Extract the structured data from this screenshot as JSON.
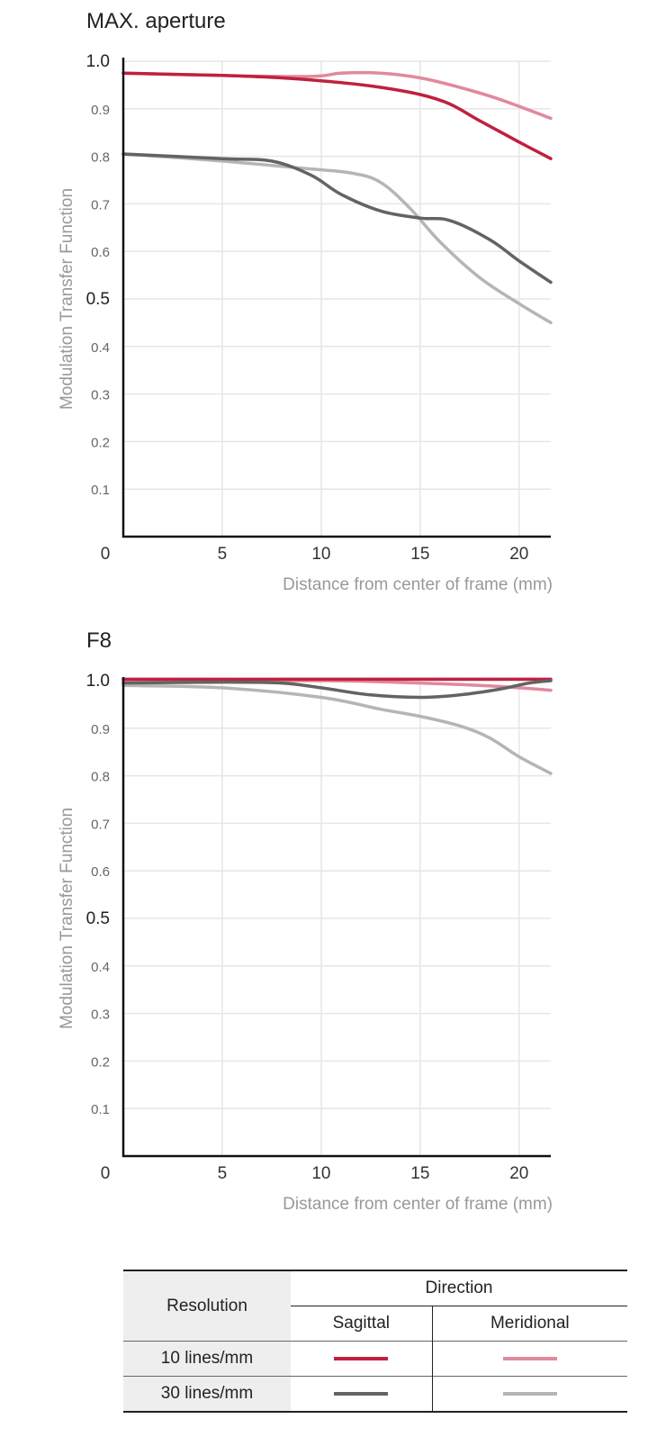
{
  "chart_data": [
    {
      "type": "line",
      "title": "MAX. aperture",
      "xlabel": "Distance from center of frame (mm)",
      "ylabel": "Modulation Transfer Function",
      "xlim": [
        0,
        21.6
      ],
      "ylim": [
        0,
        1.0
      ],
      "xticks": [
        "0",
        "5",
        "10",
        "15",
        "20"
      ],
      "yticks": [
        "0.1",
        "0.2",
        "0.3",
        "0.4",
        "0.5",
        "0.6",
        "0.7",
        "0.8",
        "0.9",
        "1.0"
      ],
      "series": [
        {
          "name": "10 lines/mm Meridional",
          "color": "#e1899d",
          "x": [
            0,
            5,
            9.5,
            11,
            13,
            15,
            17,
            19,
            21.6
          ],
          "y": [
            0.975,
            0.97,
            0.968,
            0.975,
            0.975,
            0.965,
            0.945,
            0.92,
            0.88
          ]
        },
        {
          "name": "10 lines/mm Sagittal",
          "color": "#c0203f",
          "x": [
            0,
            5,
            8,
            11,
            13,
            15,
            16.5,
            18,
            20,
            21.6
          ],
          "y": [
            0.975,
            0.97,
            0.965,
            0.955,
            0.945,
            0.93,
            0.91,
            0.875,
            0.83,
            0.795
          ]
        },
        {
          "name": "30 lines/mm Meridional",
          "color": "#b5b5b5",
          "x": [
            0,
            5,
            9,
            11.5,
            13,
            14.5,
            16,
            18,
            20,
            21.6
          ],
          "y": [
            0.805,
            0.79,
            0.775,
            0.765,
            0.745,
            0.69,
            0.62,
            0.545,
            0.49,
            0.45
          ]
        },
        {
          "name": "30 lines/mm Sagittal",
          "color": "#636363",
          "x": [
            0,
            5,
            7.5,
            9.5,
            11,
            13,
            15,
            16.5,
            18.5,
            20,
            21.6
          ],
          "y": [
            0.805,
            0.795,
            0.79,
            0.76,
            0.72,
            0.685,
            0.67,
            0.665,
            0.625,
            0.58,
            0.535
          ]
        }
      ]
    },
    {
      "type": "line",
      "title": "F8",
      "xlabel": "Distance from center of frame (mm)",
      "ylabel": "Modulation Transfer Function",
      "xlim": [
        0,
        21.6
      ],
      "ylim": [
        0,
        1.0
      ],
      "xticks": [
        "0",
        "5",
        "10",
        "15",
        "20"
      ],
      "yticks": [
        "0.1",
        "0.2",
        "0.3",
        "0.4",
        "0.5",
        "0.6",
        "0.7",
        "0.8",
        "0.9",
        "1.0"
      ],
      "series": [
        {
          "name": "10 lines/mm Meridional",
          "color": "#e1899d",
          "x": [
            0,
            10,
            15,
            18,
            20,
            21.6
          ],
          "y": [
            1.0,
            1.0,
            0.995,
            0.99,
            0.985,
            0.98
          ]
        },
        {
          "name": "10 lines/mm Sagittal",
          "color": "#c0203f",
          "x": [
            0,
            10,
            15,
            20,
            21.6
          ],
          "y": [
            1.003,
            1.003,
            1.003,
            1.003,
            1.003
          ]
        },
        {
          "name": "30 lines/mm Meridional",
          "color": "#b5b5b5",
          "x": [
            0,
            5,
            10,
            13,
            15,
            17,
            18.5,
            20,
            21.6
          ],
          "y": [
            0.99,
            0.985,
            0.965,
            0.94,
            0.925,
            0.905,
            0.88,
            0.84,
            0.805
          ]
        },
        {
          "name": "30 lines/mm Sagittal",
          "color": "#636363",
          "x": [
            0,
            5,
            8,
            10,
            12.5,
            15,
            17,
            19,
            20.5,
            21.6
          ],
          "y": [
            0.995,
            0.997,
            0.995,
            0.985,
            0.97,
            0.965,
            0.97,
            0.982,
            0.995,
            1.0
          ]
        }
      ]
    }
  ],
  "legend": {
    "resolution_header": "Resolution",
    "direction_header": "Direction",
    "sagittal": "Sagittal",
    "meridional": "Meridional",
    "rows": [
      {
        "label": "10 lines/mm",
        "sagittal_color": "#c0203f",
        "meridional_color": "#e1899d"
      },
      {
        "label": "30 lines/mm",
        "sagittal_color": "#636363",
        "meridional_color": "#b5b5b5"
      }
    ]
  }
}
